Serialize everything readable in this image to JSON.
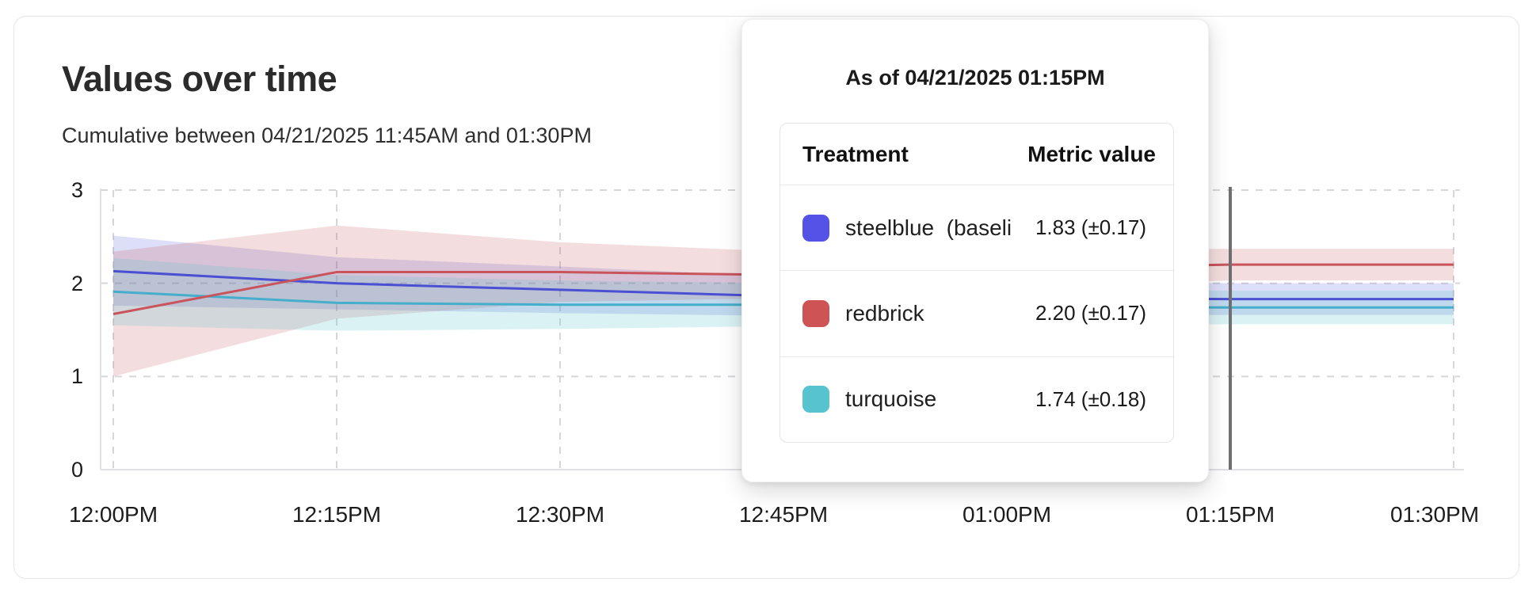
{
  "page": {
    "title": "Values over time",
    "subtitle": "Cumulative between 04/21/2025 11:45AM and 01:30PM"
  },
  "tooltip": {
    "title": "As of 04/21/2025 01:15PM",
    "col_treatment": "Treatment",
    "col_metric": "Metric value",
    "rows": [
      {
        "label": "steelblue  (baseli",
        "value": "1.83 (±0.17)",
        "swatch": "#5552e8"
      },
      {
        "label": "redbrick",
        "value": "2.20 (±0.17)",
        "swatch": "#cd5355"
      },
      {
        "label": "turquoise",
        "value": "1.74 (±0.18)",
        "swatch": "#57c3cf"
      }
    ]
  },
  "chart_data": {
    "type": "line",
    "title": "Values over time",
    "subtitle": "Cumulative between 04/21/2025 11:45AM and 01:30PM",
    "xlabel": "",
    "ylabel": "",
    "x_tick_labels": [
      "12:00PM",
      "12:15PM",
      "12:30PM",
      "12:45PM",
      "01:00PM",
      "01:15PM",
      "01:30PM"
    ],
    "y_tick_labels": [
      "0",
      "1",
      "2",
      "3"
    ],
    "ylim": [
      0,
      3
    ],
    "grid": "dashed",
    "legend_position": "none",
    "hover": {
      "x_label": "01:15PM",
      "x_index": 5,
      "line_color": "#707070"
    },
    "draw_order": [
      2,
      0,
      1
    ],
    "series": [
      {
        "name": "steelblue (baseline)",
        "color": "#4b4fd2",
        "band_color": "rgba(75,79,210,0.19)",
        "values": [
          2.13,
          2.0,
          1.93,
          1.86,
          1.84,
          1.83,
          1.83
        ],
        "band_low": [
          1.76,
          1.72,
          1.68,
          1.65,
          1.65,
          1.66,
          1.66
        ],
        "band_high": [
          2.51,
          2.28,
          2.18,
          2.07,
          2.03,
          2.0,
          2.0
        ],
        "value_at_hover": "1.83 (±0.17)"
      },
      {
        "name": "redbrick",
        "color": "#c9545c",
        "band_color": "rgba(201,84,92,0.20)",
        "values": [
          1.67,
          2.12,
          2.12,
          2.09,
          2.16,
          2.2,
          2.2
        ],
        "band_low": [
          1.0,
          1.62,
          1.8,
          1.84,
          1.96,
          2.03,
          2.03
        ],
        "band_high": [
          2.34,
          2.62,
          2.44,
          2.34,
          2.36,
          2.37,
          2.37
        ],
        "value_at_hover": "2.20 (±0.17)"
      },
      {
        "name": "turquoise",
        "color": "#45aecb",
        "band_color": "rgba(87,195,207,0.22)",
        "values": [
          1.91,
          1.79,
          1.77,
          1.77,
          1.75,
          1.74,
          1.74
        ],
        "band_low": [
          1.55,
          1.49,
          1.51,
          1.54,
          1.55,
          1.56,
          1.56
        ],
        "band_high": [
          2.27,
          2.09,
          2.03,
          2.0,
          1.95,
          1.92,
          1.92
        ],
        "value_at_hover": "1.74 (±0.18)"
      }
    ],
    "axis_color": "#e0e0e5",
    "gridline_color": "#d6d6db"
  }
}
